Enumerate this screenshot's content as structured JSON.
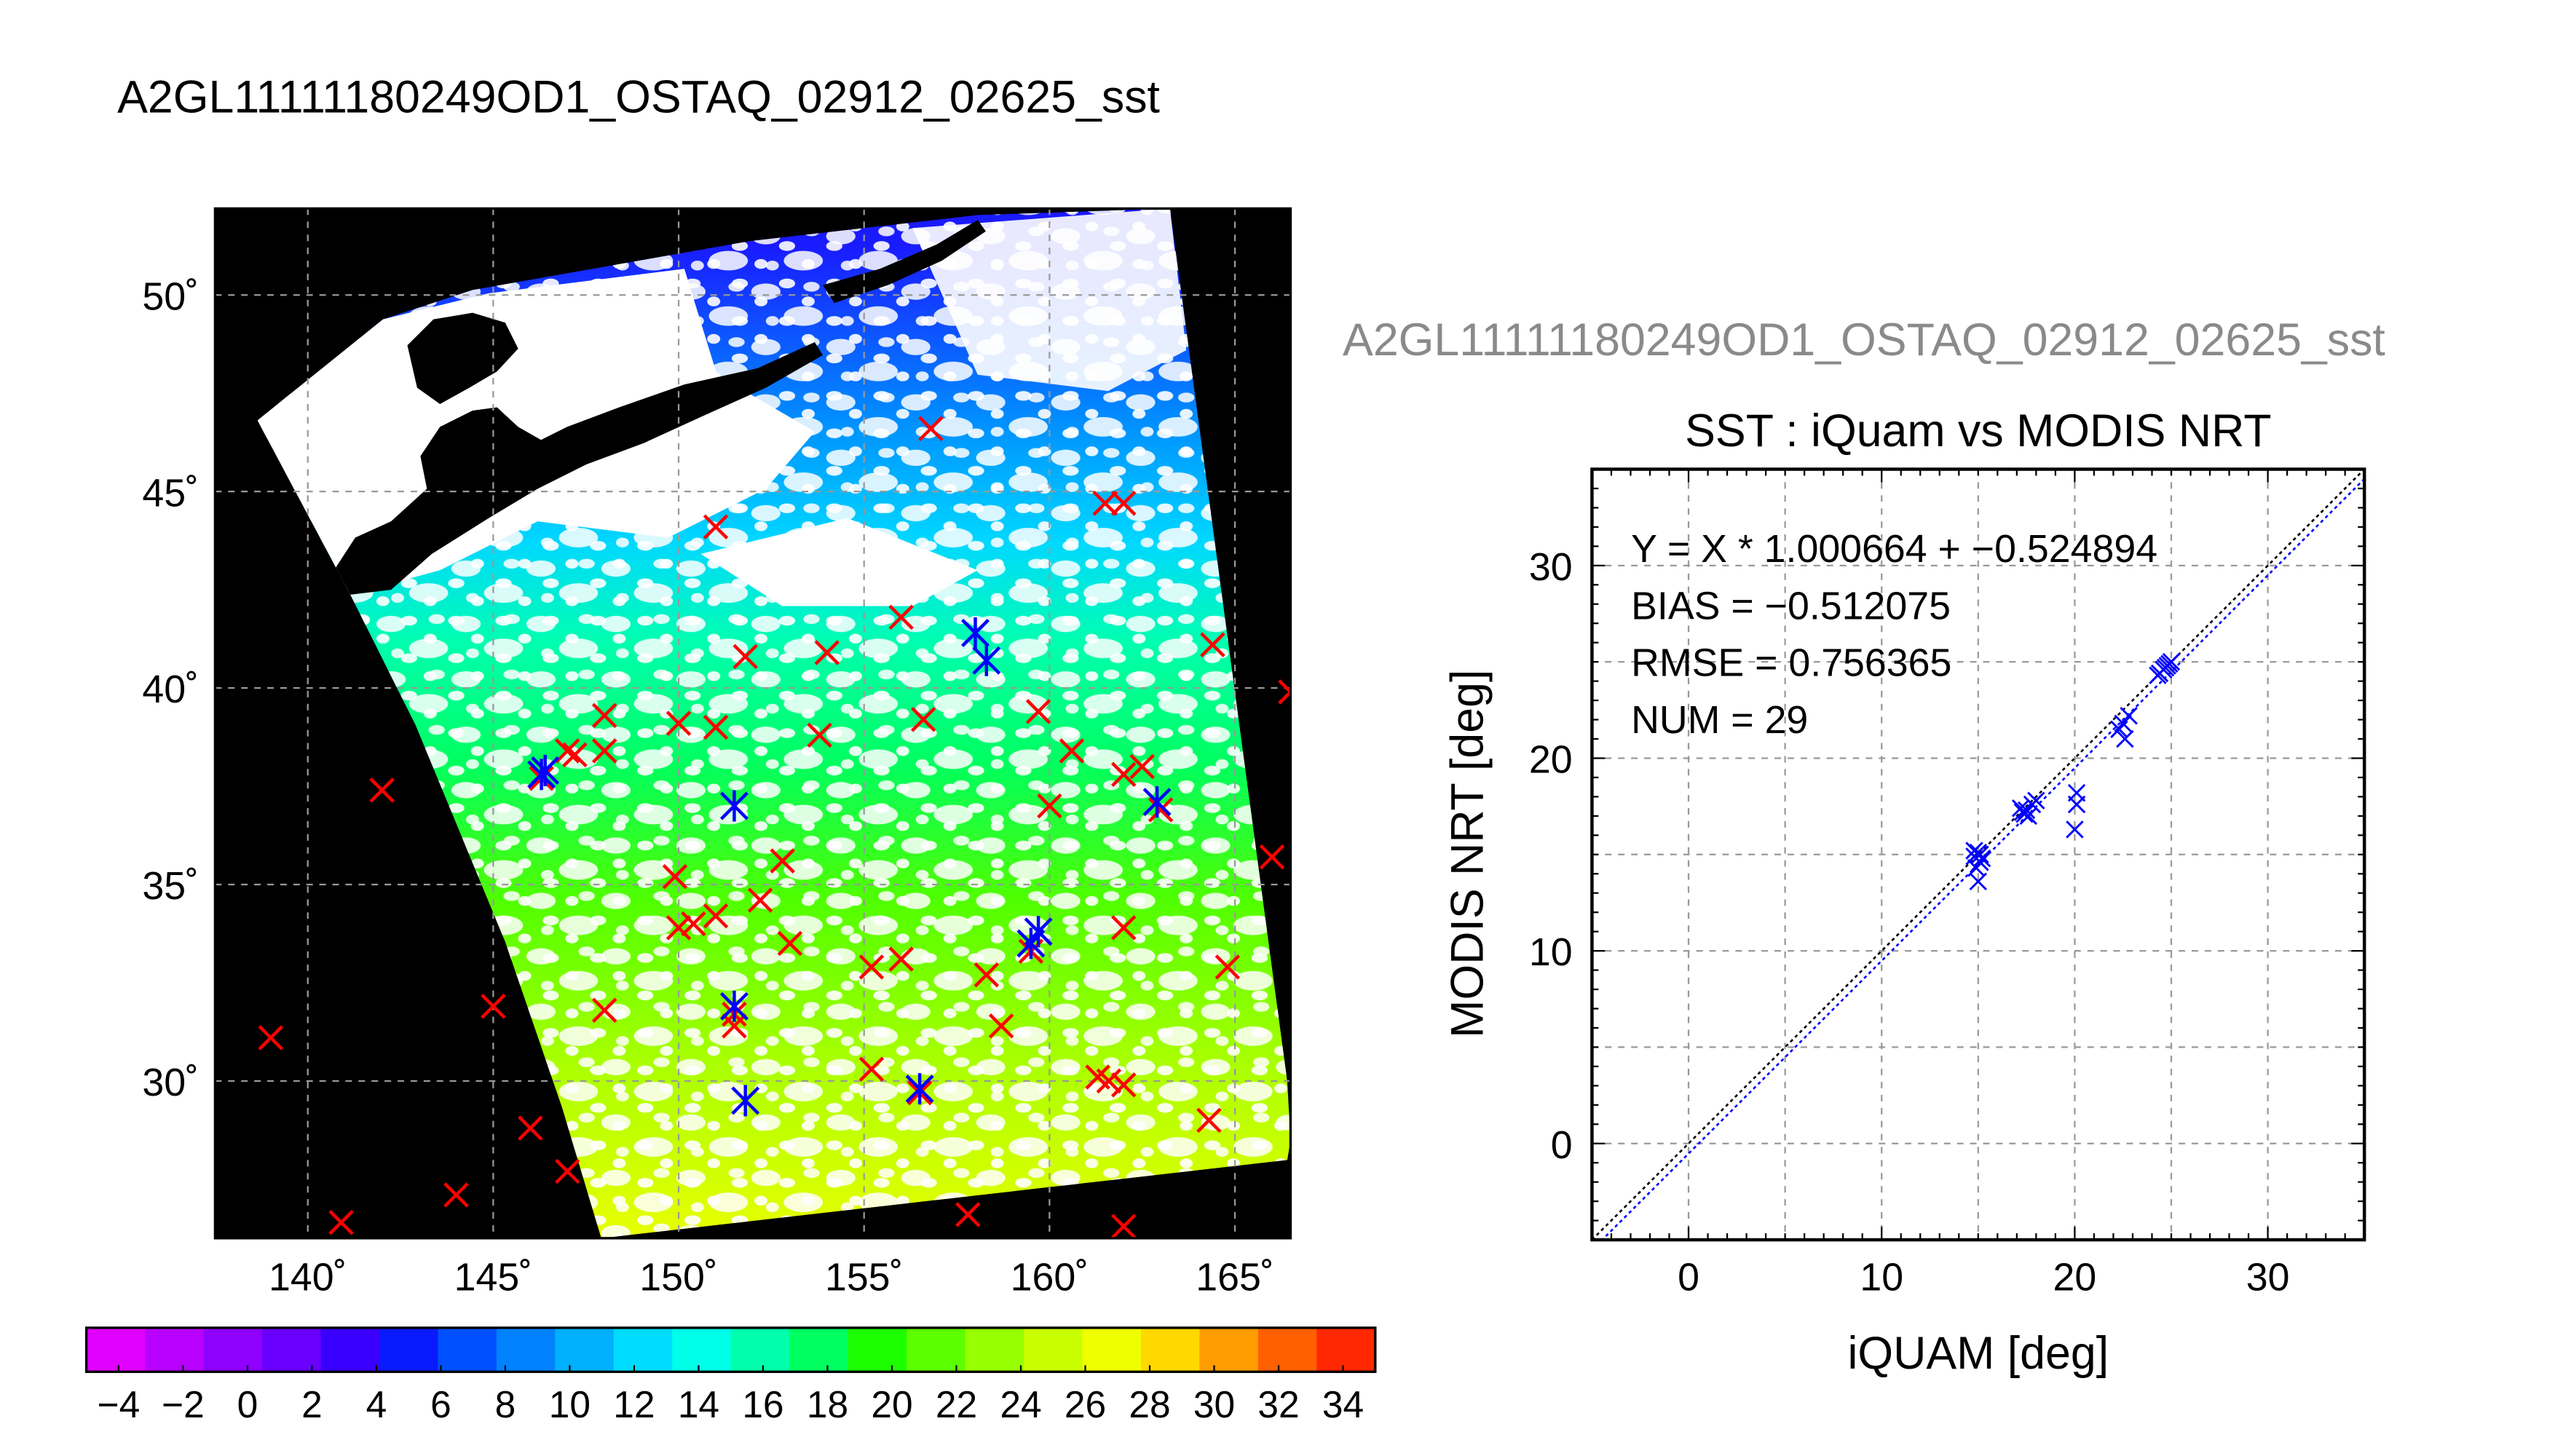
{
  "page_title": "A2GL11111180249OD1_OSTAQ_02912_02625_sst",
  "scatter_subtitle": "A2GL11111180249OD1_OSTAQ_02912_02625_sst",
  "chart_data": [
    {
      "type": "scatter",
      "subtype": "map",
      "title": "",
      "xlabel": "",
      "ylabel": "",
      "xlim": [
        137.5,
        166.5
      ],
      "ylim": [
        26,
        52.2
      ],
      "x_ticks": [
        140,
        145,
        150,
        155,
        160,
        165
      ],
      "x_tick_labels": [
        "140˚",
        "145˚",
        "150˚",
        "155˚",
        "160˚",
        "165˚"
      ],
      "y_ticks": [
        30,
        35,
        40,
        45,
        50
      ],
      "y_tick_labels": [
        "30˚",
        "35˚",
        "40˚",
        "45˚",
        "50˚"
      ],
      "grid": true,
      "background": "#000000",
      "colorbar": {
        "min": -5,
        "max": 35,
        "tick_values": [
          -4,
          -2,
          0,
          2,
          4,
          6,
          8,
          10,
          12,
          14,
          16,
          18,
          20,
          22,
          24,
          26,
          28,
          30,
          32,
          34
        ],
        "tick_labels": [
          "−4",
          "−2",
          "0",
          "2",
          "4",
          "6",
          "8",
          "10",
          "12",
          "14",
          "16",
          "18",
          "20",
          "22",
          "24",
          "26",
          "28",
          "30",
          "32",
          "34"
        ],
        "colors": [
          "#e000ff",
          "#b800ff",
          "#8f00ff",
          "#6a00ff",
          "#3a00ff",
          "#0a1aff",
          "#0050ff",
          "#0082ff",
          "#00b0ff",
          "#00dcff",
          "#00ffe8",
          "#00ffaa",
          "#00ff60",
          "#1cff00",
          "#5cff00",
          "#96ff00",
          "#c8ff00",
          "#f0ff00",
          "#ffd800",
          "#ff9c00",
          "#ff6000",
          "#ff2800"
        ]
      },
      "series": [
        {
          "marker": "x",
          "color": "#ff0000",
          "points": [
            [
              156.8,
              46.6
            ],
            [
              151.0,
              44.1
            ],
            [
              161.5,
              44.7
            ],
            [
              162.0,
              44.7
            ],
            [
              156.0,
              41.8
            ],
            [
              151.8,
              40.8
            ],
            [
              154.0,
              40.9
            ],
            [
              164.4,
              41.1
            ],
            [
              158.0,
              41.4
            ],
            [
              148.0,
              39.3
            ],
            [
              150.0,
              39.1
            ],
            [
              151.0,
              39.0
            ],
            [
              153.8,
              38.8
            ],
            [
              156.6,
              39.2
            ],
            [
              159.7,
              39.4
            ],
            [
              160.6,
              38.4
            ],
            [
              162.0,
              37.8
            ],
            [
              162.5,
              38.0
            ],
            [
              147.2,
              38.3
            ],
            [
              147.0,
              38.4
            ],
            [
              148.0,
              38.4
            ],
            [
              146.3,
              37.7
            ],
            [
              142.0,
              37.4
            ],
            [
              160.0,
              37.0
            ],
            [
              163.0,
              36.9
            ],
            [
              152.8,
              35.6
            ],
            [
              149.9,
              35.2
            ],
            [
              152.2,
              34.6
            ],
            [
              166.0,
              35.7
            ],
            [
              150.4,
              34.0
            ],
            [
              150.0,
              33.9
            ],
            [
              151.0,
              34.2
            ],
            [
              153.0,
              33.5
            ],
            [
              156.0,
              33.1
            ],
            [
              155.2,
              32.9
            ],
            [
              159.5,
              33.3
            ],
            [
              158.3,
              32.7
            ],
            [
              162.0,
              33.9
            ],
            [
              164.8,
              32.9
            ],
            [
              145.0,
              31.9
            ],
            [
              148.0,
              31.8
            ],
            [
              151.5,
              31.4
            ],
            [
              158.7,
              31.4
            ],
            [
              139.0,
              31.1
            ],
            [
              151.5,
              31.7
            ],
            [
              155.2,
              30.3
            ],
            [
              161.6,
              30.0
            ],
            [
              162.0,
              29.9
            ],
            [
              161.3,
              30.1
            ],
            [
              156.5,
              29.7
            ],
            [
              164.3,
              29.0
            ],
            [
              146.0,
              28.8
            ],
            [
              147.0,
              27.7
            ],
            [
              144.0,
              27.1
            ],
            [
              140.9,
              26.4
            ],
            [
              157.8,
              26.6
            ],
            [
              162.0,
              26.3
            ],
            [
              166.5,
              39.9
            ]
          ]
        },
        {
          "marker": "asterisk",
          "color": "#0000ff",
          "points": [
            [
              158.0,
              41.4
            ],
            [
              158.3,
              40.7
            ],
            [
              146.3,
              37.8
            ],
            [
              146.4,
              37.9
            ],
            [
              151.5,
              37.0
            ],
            [
              162.9,
              37.1
            ],
            [
              159.7,
              33.8
            ],
            [
              159.5,
              33.5
            ],
            [
              151.5,
              31.9
            ],
            [
              151.8,
              29.5
            ],
            [
              156.5,
              29.8
            ]
          ]
        }
      ]
    },
    {
      "type": "scatter",
      "title": "SST : iQuam vs MODIS NRT",
      "xlabel": "iQUAM [deg]",
      "ylabel": "MODIS NRT [deg]",
      "xlim": [
        -5,
        35
      ],
      "ylim": [
        -5,
        35
      ],
      "x_ticks": [
        0,
        10,
        20,
        30
      ],
      "y_ticks": [
        0,
        10,
        20,
        30
      ],
      "minor_grid_step": 5,
      "grid": true,
      "annotations": [
        "Y = X * 1.000664 + −0.524894",
        "BIAS = −0.512075",
        "RMSE = 0.756365",
        "NUM = 29"
      ],
      "fit": {
        "slope": 1.000664,
        "intercept": -0.524894
      },
      "series": [
        {
          "marker": "x",
          "color": "#0000ff",
          "x": [
            14.8,
            15.0,
            15.1,
            15.2,
            14.9,
            15.0,
            14.8,
            17.3,
            17.5,
            17.6,
            17.2,
            18.0,
            17.8,
            20.1,
            20.1,
            20.0,
            22.3,
            22.6,
            22.8,
            24.4,
            24.6,
            24.9,
            24.7,
            25.0,
            24.3,
            24.8,
            17.4,
            15.1,
            22.5
          ],
          "y": [
            14.9,
            15.1,
            15.0,
            14.8,
            14.3,
            13.6,
            15.2,
            17.2,
            17.3,
            17.0,
            17.4,
            17.8,
            17.6,
            18.2,
            17.6,
            16.3,
            21.5,
            21.0,
            22.2,
            24.4,
            24.6,
            24.9,
            24.7,
            25.0,
            24.3,
            24.8,
            17.1,
            14.6,
            21.8
          ]
        }
      ]
    }
  ]
}
